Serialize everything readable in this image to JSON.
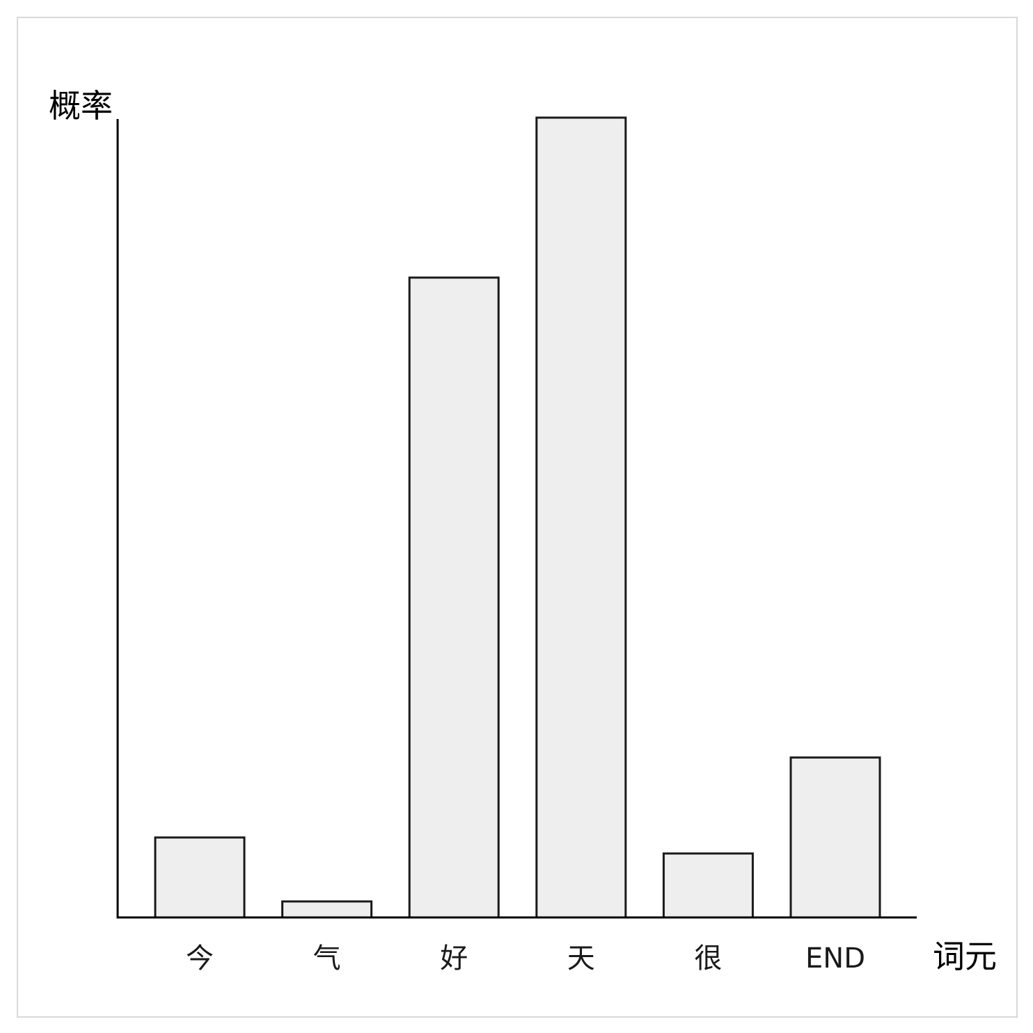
{
  "chart_data": {
    "type": "bar",
    "categories": [
      "今",
      "气",
      "好",
      "天",
      "很",
      "END"
    ],
    "values": [
      10,
      2,
      80,
      100,
      8,
      20
    ],
    "xlabel": "词元",
    "ylabel": "概率",
    "ylim": [
      0,
      100
    ],
    "grid": false,
    "bar_fill": "#eeeeee",
    "bar_stroke": "#1a1a1a",
    "axis_color": "#000000"
  }
}
